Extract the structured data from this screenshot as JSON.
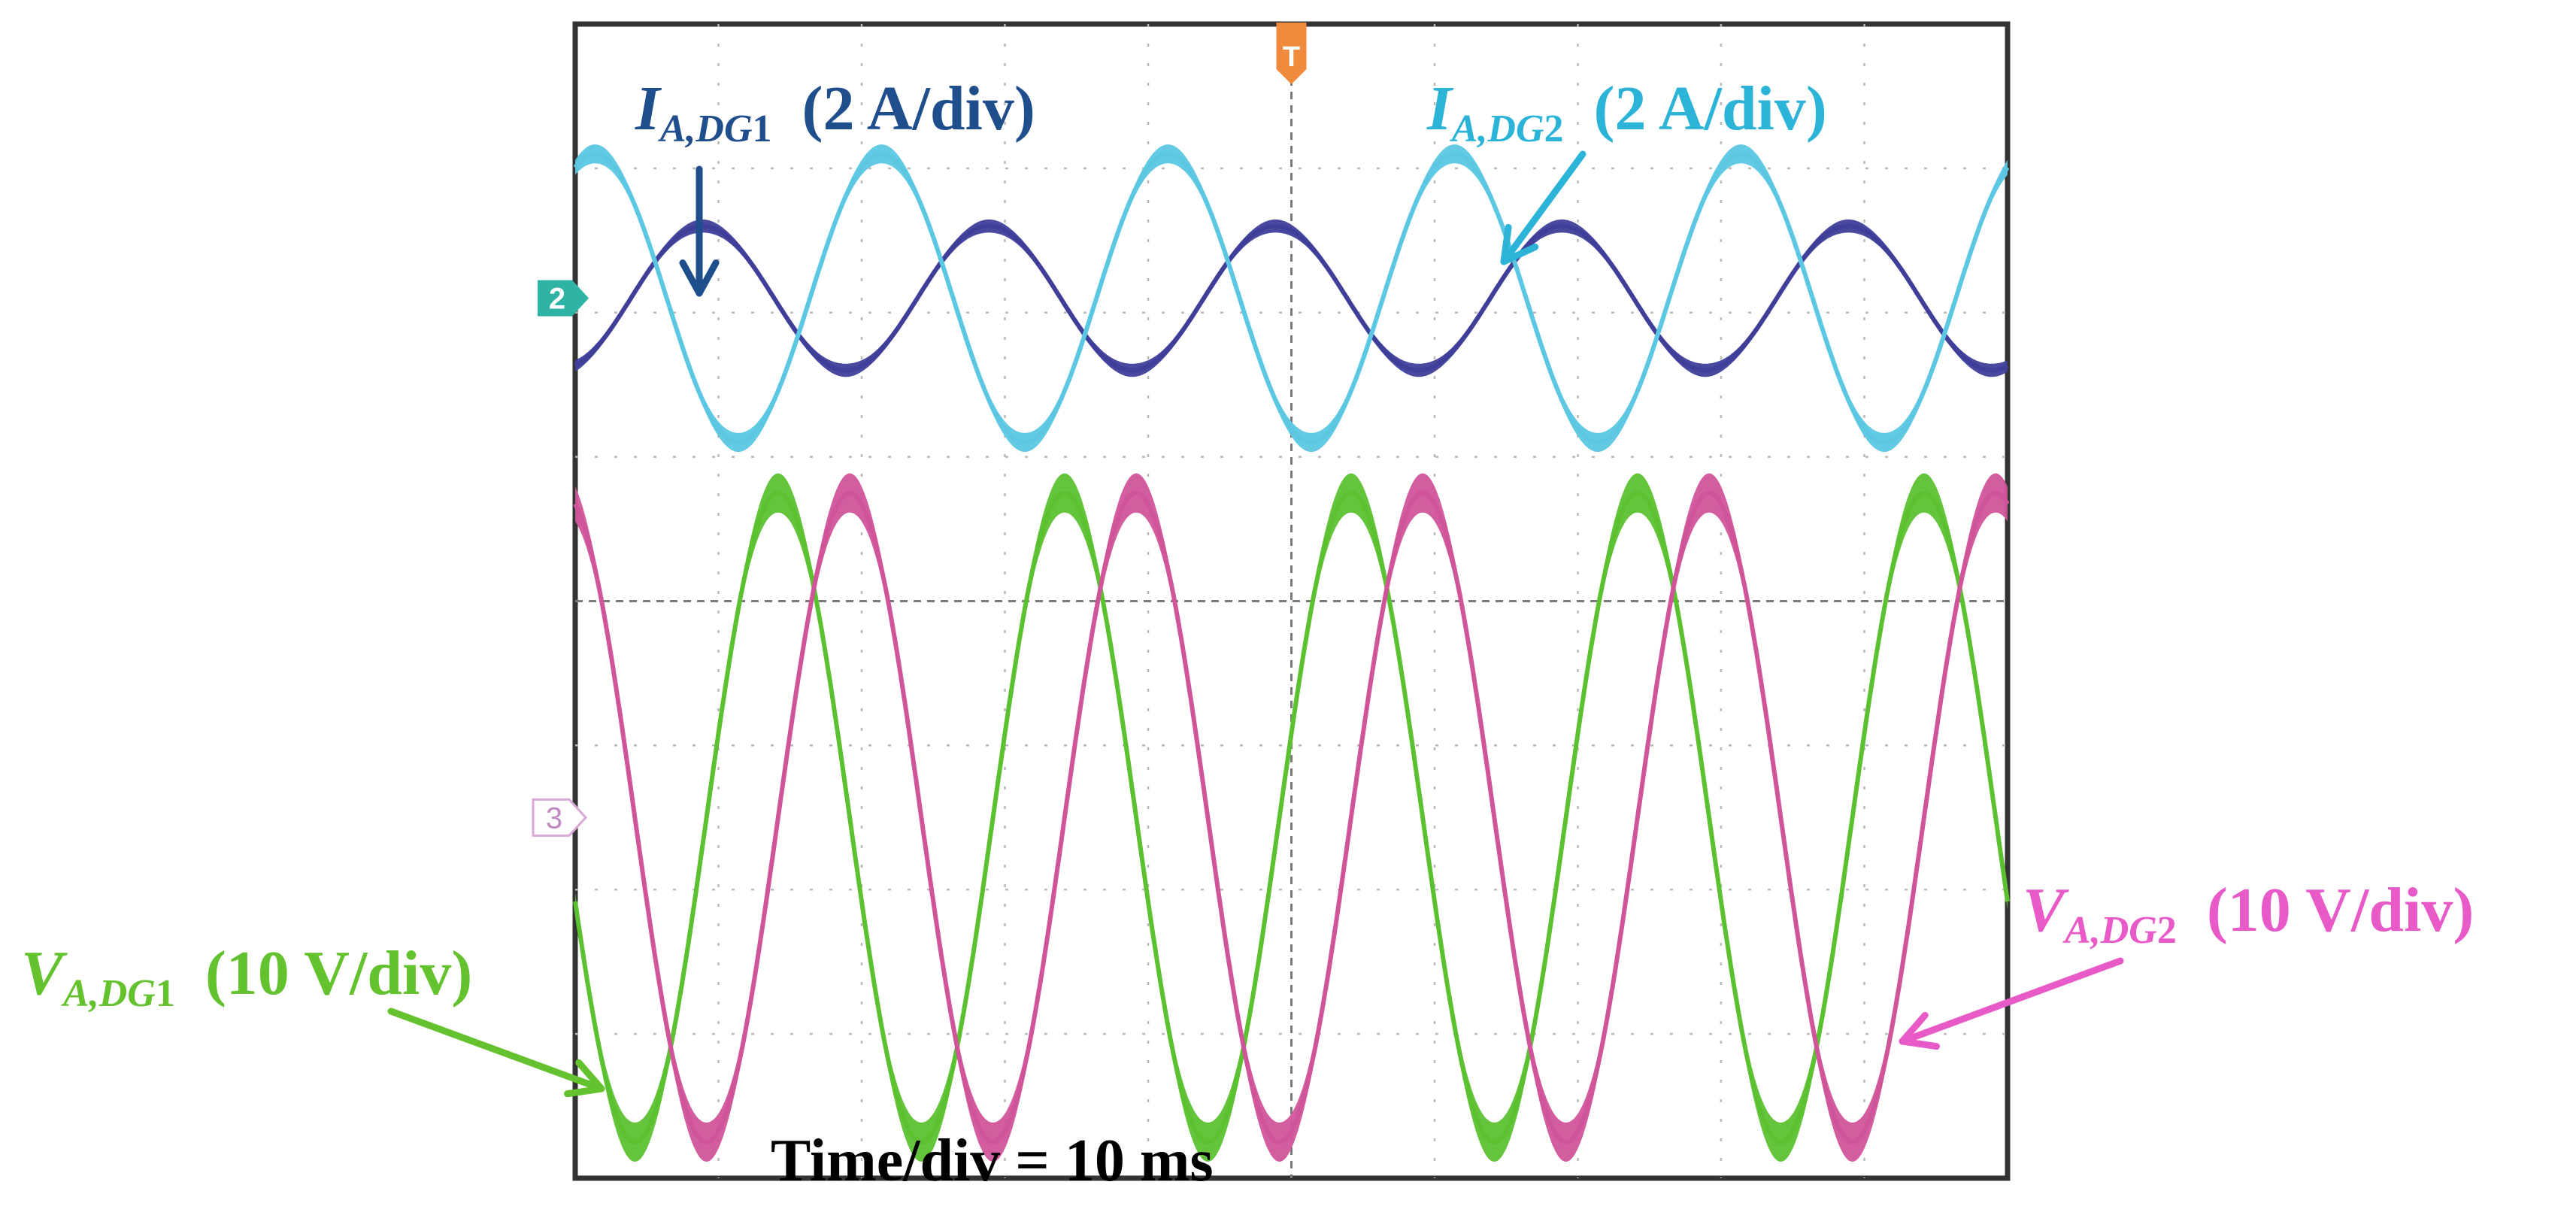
{
  "chart_data": {
    "type": "line",
    "title": "",
    "time_per_div_label": "Time/div = 10 ms",
    "x_divisions": 10,
    "y_divisions": 8,
    "x_range_ms": [
      0,
      100
    ],
    "frequency_hz": 50,
    "grid": "dotted",
    "series": [
      {
        "name": "I_A,DG1",
        "channel": "2",
        "symbol_main": "I",
        "symbol_sub": "A,DG",
        "symbol_num": "1",
        "scale_label": "(2 A/div)",
        "color": "#3f3f9a",
        "label_color": "#1f4e8c",
        "amplitude_div": 0.5,
        "offset_div": 2.1,
        "phase_deg": -70,
        "noise_div": 0.03
      },
      {
        "name": "I_A,DG2",
        "channel": "",
        "symbol_main": "I",
        "symbol_sub": "A,DG",
        "symbol_num": "2",
        "scale_label": "(2 A/div)",
        "color": "#5bc7e3",
        "label_color": "#2bb3d8",
        "amplitude_div": 1.0,
        "offset_div": 2.1,
        "phase_deg": 65,
        "noise_div": 0.05
      },
      {
        "name": "V_A,DG1",
        "channel": "3",
        "symbol_main": "V",
        "symbol_sub": "A,DG",
        "symbol_num": "1",
        "scale_label": "(10 V/div)",
        "color": "#5cc130",
        "label_color": "#63c22e",
        "amplitude_div": 2.25,
        "offset_div": -1.5,
        "phase_deg": 195,
        "noise_div": 0.12
      },
      {
        "name": "V_A,DG2",
        "channel": "",
        "symbol_main": "V",
        "symbol_sub": "A,DG",
        "symbol_num": "2",
        "scale_label": "(10 V/div)",
        "color": "#d0549a",
        "label_color": "#e85ac8",
        "amplitude_div": 2.25,
        "offset_div": -1.5,
        "phase_deg": 105,
        "noise_div": 0.12
      }
    ],
    "markers": {
      "trigger": "T",
      "ch2": "2",
      "ch3": "3"
    }
  }
}
